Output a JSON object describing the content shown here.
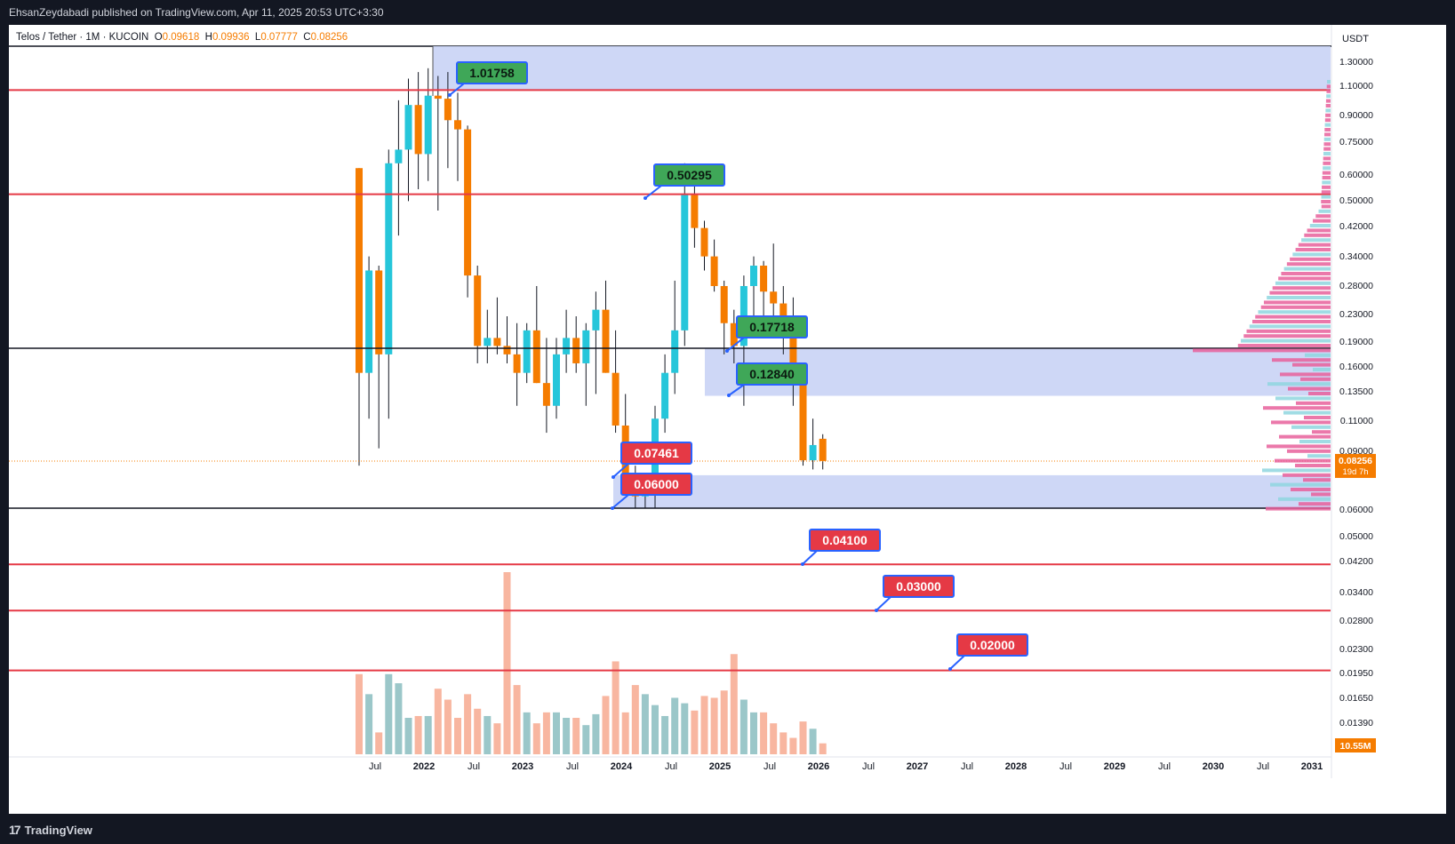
{
  "header": {
    "publisher_text": "EhsanZeydabadi published on TradingView.com, Apr 11, 2025 20:53 UTC+3:30"
  },
  "legend": {
    "symbol": "Telos / Tether · 1M · KUCOIN",
    "o_label": "O",
    "o_value": "0.09618",
    "h_label": "H",
    "h_value": "0.09936",
    "l_label": "L",
    "l_value": "0.07777",
    "c_label": "C",
    "c_value": "0.08256"
  },
  "footer": {
    "brand": "TradingView"
  },
  "chart_data": {
    "type": "candlestick",
    "timeframe": "1M",
    "price_currency": "USDT",
    "y_scale": "log",
    "y_ticks": [
      "1.30000",
      "1.10000",
      "0.90000",
      "0.75000",
      "0.60000",
      "0.50000",
      "0.42000",
      "0.34000",
      "0.28000",
      "0.23000",
      "0.19000",
      "0.16000",
      "0.13500",
      "0.11000",
      "0.09000",
      "0.06000",
      "0.05000",
      "0.04200",
      "0.03400",
      "0.02800",
      "0.02300",
      "0.01950",
      "0.01650",
      "0.01390"
    ],
    "x_ticks": [
      "Jul",
      "2022",
      "Jul",
      "2023",
      "Jul",
      "2024",
      "Jul",
      "2025",
      "Jul",
      "2026",
      "Jul",
      "2027",
      "Jul",
      "2028",
      "Jul",
      "2029",
      "Jul",
      "2030",
      "Jul",
      "2031"
    ],
    "last_price": "0.08256",
    "countdown": "19d 7h",
    "volume_last": "10.55M",
    "colors": {
      "up": "#26c6da",
      "down": "#f57c00",
      "support_line": "#e53945",
      "zone": "#c9d3f5",
      "label_green": "#3fa758",
      "label_red": "#e53945",
      "label_border": "#2962ff"
    },
    "candles": [
      [
        0.6,
        0.6,
        0.08,
        0.15
      ],
      [
        0.15,
        0.33,
        0.11,
        0.3
      ],
      [
        0.3,
        0.31,
        0.09,
        0.17
      ],
      [
        0.17,
        0.68,
        0.11,
        0.62
      ],
      [
        0.62,
        0.95,
        0.38,
        0.68
      ],
      [
        0.68,
        1.1,
        0.48,
        0.92
      ],
      [
        0.92,
        1.15,
        0.52,
        0.66
      ],
      [
        0.66,
        1.18,
        0.55,
        0.98
      ],
      [
        0.98,
        1.12,
        0.45,
        0.96
      ],
      [
        0.96,
        1.15,
        0.6,
        0.83
      ],
      [
        0.83,
        1.0,
        0.55,
        0.78
      ],
      [
        0.78,
        0.8,
        0.25,
        0.29
      ],
      [
        0.29,
        0.31,
        0.16,
        0.18
      ],
      [
        0.18,
        0.23,
        0.16,
        0.19
      ],
      [
        0.19,
        0.25,
        0.17,
        0.18
      ],
      [
        0.18,
        0.22,
        0.16,
        0.17
      ],
      [
        0.17,
        0.21,
        0.12,
        0.15
      ],
      [
        0.15,
        0.21,
        0.14,
        0.2
      ],
      [
        0.2,
        0.27,
        0.14,
        0.14
      ],
      [
        0.14,
        0.19,
        0.1,
        0.12
      ],
      [
        0.12,
        0.19,
        0.11,
        0.17
      ],
      [
        0.17,
        0.23,
        0.15,
        0.19
      ],
      [
        0.19,
        0.22,
        0.15,
        0.16
      ],
      [
        0.16,
        0.21,
        0.12,
        0.2
      ],
      [
        0.2,
        0.26,
        0.13,
        0.23
      ],
      [
        0.23,
        0.28,
        0.15,
        0.15
      ],
      [
        0.15,
        0.2,
        0.1,
        0.105
      ],
      [
        0.105,
        0.13,
        0.07,
        0.075
      ],
      [
        0.075,
        0.08,
        0.06,
        0.065
      ],
      [
        0.065,
        0.07,
        0.06,
        0.068
      ],
      [
        0.068,
        0.12,
        0.06,
        0.11
      ],
      [
        0.11,
        0.17,
        0.1,
        0.15
      ],
      [
        0.15,
        0.28,
        0.13,
        0.2
      ],
      [
        0.2,
        0.62,
        0.18,
        0.5
      ],
      [
        0.5,
        0.55,
        0.35,
        0.4
      ],
      [
        0.4,
        0.42,
        0.3,
        0.33
      ],
      [
        0.33,
        0.37,
        0.26,
        0.27
      ],
      [
        0.27,
        0.28,
        0.17,
        0.21
      ],
      [
        0.21,
        0.23,
        0.16,
        0.18
      ],
      [
        0.18,
        0.29,
        0.12,
        0.27
      ],
      [
        0.27,
        0.33,
        0.19,
        0.31
      ],
      [
        0.31,
        0.32,
        0.22,
        0.26
      ],
      [
        0.26,
        0.36,
        0.2,
        0.24
      ],
      [
        0.24,
        0.27,
        0.17,
        0.21
      ],
      [
        0.21,
        0.25,
        0.12,
        0.14
      ],
      [
        0.14,
        0.14,
        0.08,
        0.083
      ],
      [
        0.083,
        0.11,
        0.078,
        0.092
      ],
      [
        0.096,
        0.099,
        0.078,
        0.0826
      ]
    ],
    "volumes": [
      44,
      33,
      12,
      44,
      39,
      20,
      21,
      21,
      36,
      30,
      20,
      33,
      25,
      21,
      17,
      100,
      38,
      23,
      17,
      23,
      23,
      20,
      20,
      16,
      22,
      32,
      51,
      23,
      38,
      33,
      27,
      21,
      31,
      28,
      24,
      32,
      31,
      35,
      55,
      30,
      23,
      23,
      17,
      12,
      9,
      18,
      14,
      6
    ],
    "horizontal_lines": [
      {
        "price": 1.01758,
        "style": "red"
      },
      {
        "price": 0.50295,
        "style": "red"
      },
      {
        "price": 0.17718,
        "style": "black"
      },
      {
        "price": 0.06,
        "style": "black"
      },
      {
        "price": 0.041,
        "style": "red"
      },
      {
        "price": 0.03,
        "style": "red"
      },
      {
        "price": 0.02,
        "style": "red"
      }
    ],
    "zones": [
      {
        "top": 1.4,
        "bottom": 1.01758
      },
      {
        "top": 0.17718,
        "bottom": 0.1284
      },
      {
        "top": 0.075,
        "bottom": 0.06
      }
    ],
    "labels": [
      {
        "text": "1.01758",
        "color": "green"
      },
      {
        "text": "0.50295",
        "color": "green"
      },
      {
        "text": "0.17718",
        "color": "green"
      },
      {
        "text": "0.12840",
        "color": "green"
      },
      {
        "text": "0.07461",
        "color": "red"
      },
      {
        "text": "0.06000",
        "color": "red"
      },
      {
        "text": "0.04100",
        "color": "red"
      },
      {
        "text": "0.03000",
        "color": "red"
      },
      {
        "text": "0.02000",
        "color": "red"
      }
    ],
    "volume_profile_note": "horizontal volume profile on right edge, pink (down) and cyan (up) bars"
  }
}
